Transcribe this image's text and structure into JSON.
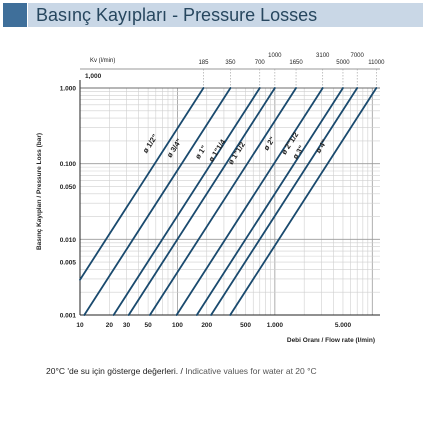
{
  "header": {
    "title": "Basınç Kayıpları - Pressure Losses",
    "accent_color": "#3f6f9a",
    "band_color": "#c9d7e6"
  },
  "caption": {
    "tr": "20°C 'de su için gösterge değerleri. /",
    "en": " Indicative values for water at 20 °C"
  },
  "chart_data": {
    "type": "line",
    "title": "",
    "xlabel": "Debi Oranı / Flow rate (l/min)",
    "ylabel": "Basınç Kayıpları / Pressure Loss (bar)",
    "x_scale": "log",
    "y_scale": "log",
    "xlim": [
      10,
      12000
    ],
    "ylim": [
      0.001,
      1
    ],
    "x_tick_labels": [
      {
        "value": 10,
        "label": "10"
      },
      {
        "value": 20,
        "label": "20"
      },
      {
        "value": 30,
        "label": "30"
      },
      {
        "value": 50,
        "label": "50"
      },
      {
        "value": 100,
        "label": "100"
      },
      {
        "value": 200,
        "label": "200"
      },
      {
        "value": 500,
        "label": "500"
      },
      {
        "value": 1000,
        "label": "1.000"
      },
      {
        "value": 5000,
        "label": "5.000"
      }
    ],
    "y_tick_labels": [
      {
        "value": 1,
        "label": "1.000"
      },
      {
        "value": 0.1,
        "label": "0.100"
      },
      {
        "value": 0.05,
        "label": "0.050"
      },
      {
        "value": 0.01,
        "label": "0.010"
      },
      {
        "value": 0.005,
        "label": "0.005"
      },
      {
        "value": 0.001,
        "label": "0.001"
      }
    ],
    "kv_axis": {
      "label": "Kv (l/min)",
      "top_value_label": "1,000",
      "values": [
        185,
        350,
        700,
        1000,
        1650,
        3100,
        5000,
        7000,
        11000
      ],
      "labels": [
        "185",
        "350",
        "700",
        "1000",
        "1650",
        "3100",
        "5000",
        "7000",
        "11000"
      ]
    },
    "grid": true,
    "legend": "none",
    "series_color": "#1a4a6e",
    "series": [
      {
        "name": "ø 1/2\"",
        "kv": 185
      },
      {
        "name": "ø 3/4\"",
        "kv": 350
      },
      {
        "name": "ø 1\"",
        "kv": 700
      },
      {
        "name": "ø 1\"1/4",
        "kv": 1000
      },
      {
        "name": "ø 1\"1/2",
        "kv": 1650
      },
      {
        "name": "ø 2\"",
        "kv": 3100
      },
      {
        "name": "ø 2\"1/2",
        "kv": 5000
      },
      {
        "name": "ø 3\"",
        "kv": 7000
      },
      {
        "name": "ø 4\"",
        "kv": 11000
      }
    ]
  }
}
